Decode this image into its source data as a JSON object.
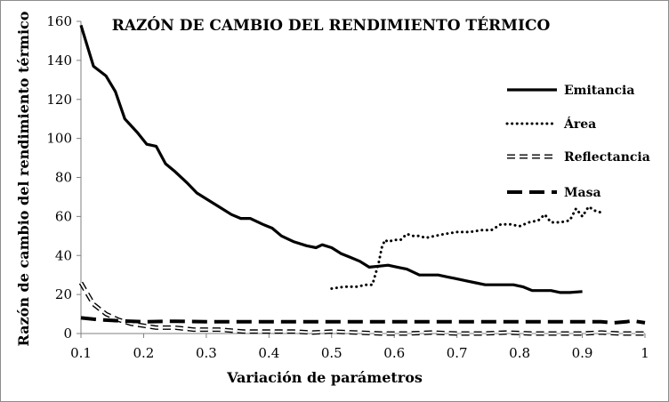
{
  "chart_data": {
    "type": "line",
    "title": "RAZÓN DE CAMBIO DEL RENDIMIENTO TÉRMICO",
    "xlabel": "Variación de parámetros",
    "ylabel": "Razón de cambio del rendimiento térmico",
    "xlim": [
      0.1,
      1.0
    ],
    "ylim": [
      0,
      160
    ],
    "xticks": [
      "0.1",
      "0.2",
      "0.3",
      "0.4",
      "0.5",
      "0.6",
      "0.7",
      "0.8",
      "0.9",
      "1"
    ],
    "yticks": [
      "0",
      "20",
      "40",
      "60",
      "80",
      "100",
      "120",
      "140",
      "160"
    ],
    "grid": false,
    "legend_position": "right",
    "series": [
      {
        "name": "Emitancia",
        "style": "solid",
        "x": [
          0.1,
          0.12,
          0.14,
          0.155,
          0.17,
          0.19,
          0.205,
          0.22,
          0.235,
          0.25,
          0.27,
          0.285,
          0.3,
          0.32,
          0.34,
          0.355,
          0.37,
          0.39,
          0.405,
          0.42,
          0.44,
          0.46,
          0.475,
          0.485,
          0.5,
          0.515,
          0.53,
          0.545,
          0.56,
          0.575,
          0.59,
          0.605,
          0.62,
          0.64,
          0.655,
          0.67,
          0.685,
          0.7,
          0.715,
          0.73,
          0.745,
          0.76,
          0.775,
          0.79,
          0.805,
          0.82,
          0.835,
          0.85,
          0.865,
          0.88,
          0.9
        ],
        "y": [
          158,
          137,
          132,
          124,
          110,
          103,
          97,
          96,
          87,
          83,
          77,
          72,
          69,
          65,
          61,
          59,
          59,
          56,
          54,
          50,
          47,
          45,
          44,
          45.5,
          44,
          41,
          39,
          37,
          34,
          34.5,
          35,
          34,
          33,
          30,
          30,
          30,
          29,
          28,
          27,
          26,
          25,
          25,
          25,
          25,
          24,
          22,
          22,
          22,
          21,
          21,
          21.5
        ]
      },
      {
        "name": "Área",
        "style": "dotted",
        "x": [
          0.5,
          0.52,
          0.54,
          0.555,
          0.565,
          0.575,
          0.58,
          0.585,
          0.59,
          0.6,
          0.61,
          0.62,
          0.63,
          0.64,
          0.65,
          0.665,
          0.68,
          0.7,
          0.72,
          0.74,
          0.755,
          0.77,
          0.785,
          0.8,
          0.815,
          0.83,
          0.84,
          0.85,
          0.865,
          0.88,
          0.89,
          0.9,
          0.91,
          0.92,
          0.93
        ],
        "y": [
          23,
          24,
          24,
          25,
          25,
          36,
          44,
          48,
          47,
          48,
          48,
          51,
          50,
          50,
          49,
          50,
          51,
          52,
          52,
          53,
          53,
          56,
          56,
          55,
          57,
          58,
          61,
          57,
          57,
          58,
          64,
          60,
          65,
          63,
          62
        ]
      },
      {
        "name": "Reflectancia",
        "style": "double-dash",
        "x": [
          0.1,
          0.12,
          0.14,
          0.16,
          0.18,
          0.2,
          0.22,
          0.25,
          0.28,
          0.32,
          0.36,
          0.4,
          0.44,
          0.47,
          0.5,
          0.54,
          0.58,
          0.62,
          0.66,
          0.7,
          0.74,
          0.78,
          0.82,
          0.86,
          0.9,
          0.93,
          0.96,
          1.0
        ],
        "y": [
          26,
          15,
          10,
          7,
          5,
          4,
          3,
          3,
          2,
          2,
          1,
          1,
          1,
          0.5,
          1,
          0.5,
          0,
          0,
          0.5,
          0,
          0,
          0.5,
          0,
          0,
          0,
          0.5,
          0,
          0
        ]
      },
      {
        "name": "Masa",
        "style": "dashed",
        "x": [
          0.1,
          0.13,
          0.16,
          0.2,
          0.25,
          0.3,
          0.4,
          0.5,
          0.6,
          0.7,
          0.8,
          0.85,
          0.87,
          0.9,
          0.93,
          0.95,
          0.97,
          0.98,
          1.0
        ],
        "y": [
          8,
          7,
          6.5,
          6,
          6.3,
          6,
          6,
          6,
          6,
          6,
          6,
          6,
          6,
          6,
          6,
          5.5,
          6,
          6.5,
          5.5
        ]
      }
    ]
  }
}
